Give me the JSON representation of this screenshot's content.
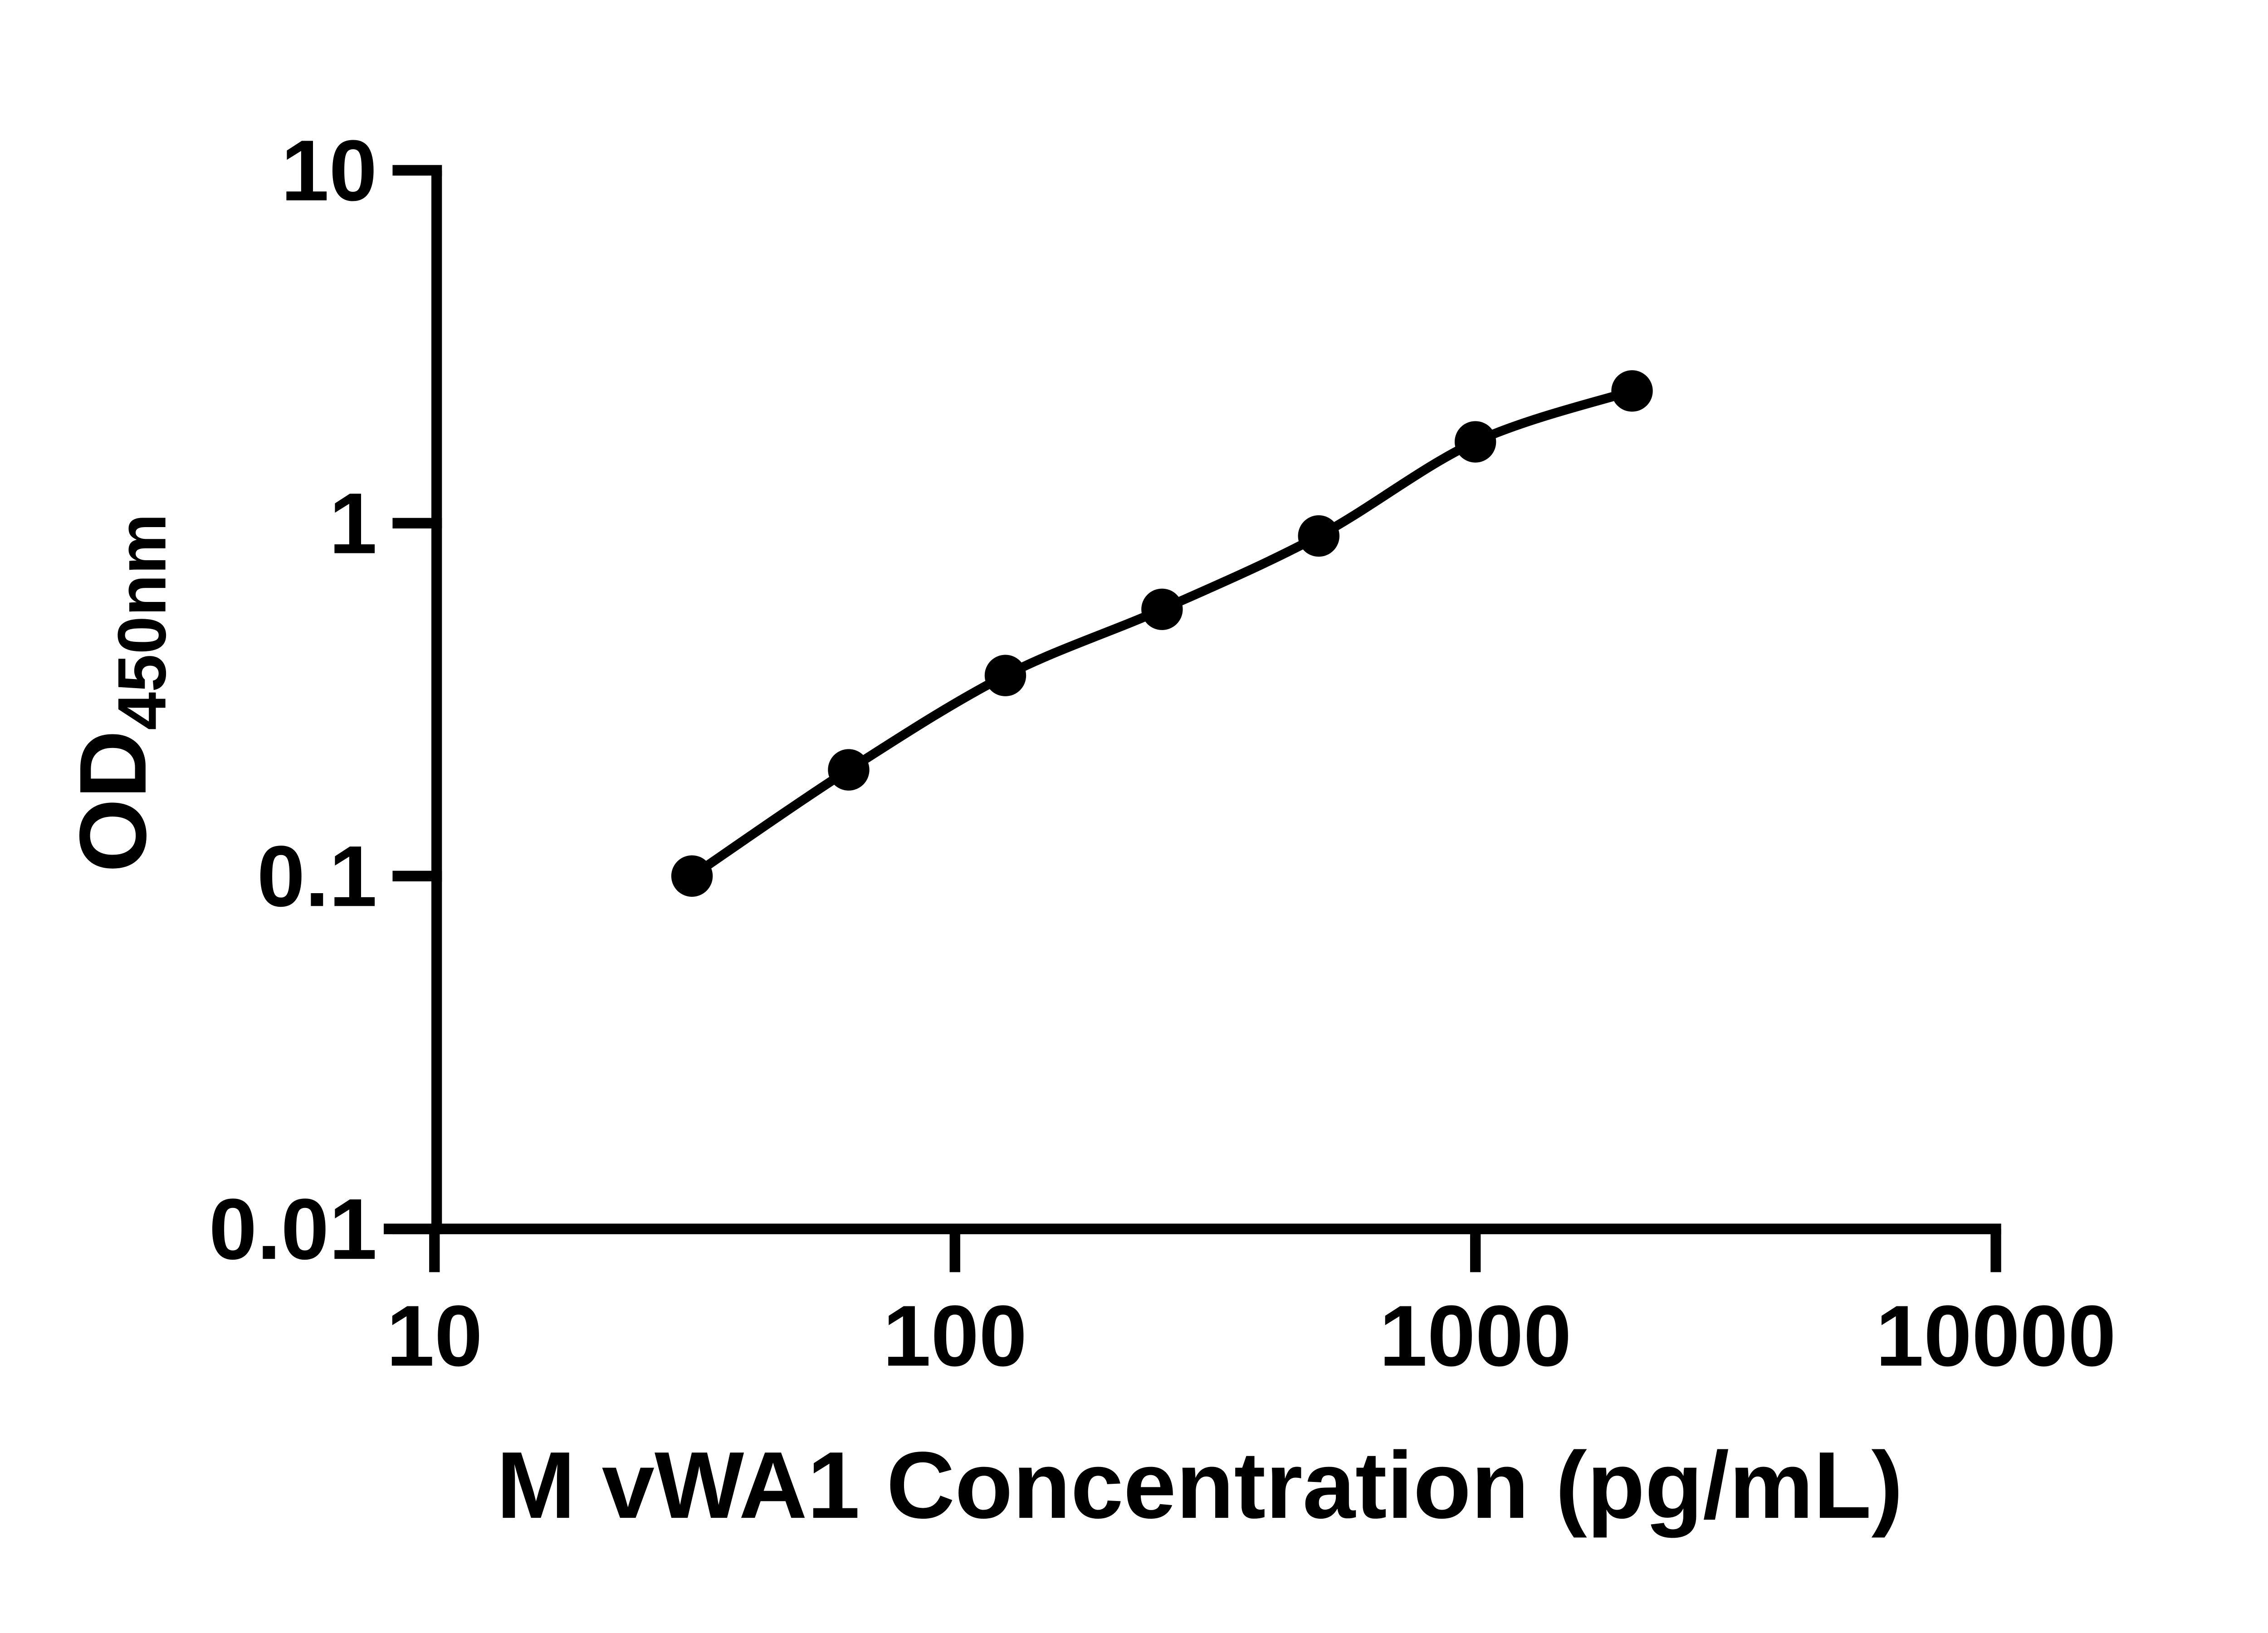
{
  "figure": {
    "background_color": "#ffffff",
    "ink_color": "#000000"
  },
  "chart_data": {
    "type": "scatter",
    "subtype": "elisa-standard-curve",
    "title": "",
    "xlabel": "M vWA1 Concentration (pg/mL)",
    "ylabel_main": "OD",
    "ylabel_sub": "450nm",
    "x_scale": "log10",
    "y_scale": "log10",
    "xlim": [
      10,
      10000
    ],
    "ylim": [
      0.01,
      10
    ],
    "grid": "off",
    "legend": "none",
    "x_ticks": [
      10,
      100,
      1000,
      10000
    ],
    "x_tick_labels": [
      "10",
      "100",
      "1000",
      "10000"
    ],
    "y_ticks": [
      10,
      1,
      0.1,
      0.01
    ],
    "y_tick_labels": [
      "10",
      "1",
      "0.1",
      "0.01"
    ],
    "series": [
      {
        "name": "standard-curve",
        "marker": "filled-circle",
        "line": "smooth-fit-through-points",
        "color": "#000000",
        "points": [
          {
            "x": 31.25,
            "y": 0.1
          },
          {
            "x": 62.5,
            "y": 0.2
          },
          {
            "x": 125,
            "y": 0.37
          },
          {
            "x": 250,
            "y": 0.57
          },
          {
            "x": 500,
            "y": 0.92
          },
          {
            "x": 1000,
            "y": 1.7
          },
          {
            "x": 2000,
            "y": 2.37
          }
        ]
      }
    ]
  }
}
